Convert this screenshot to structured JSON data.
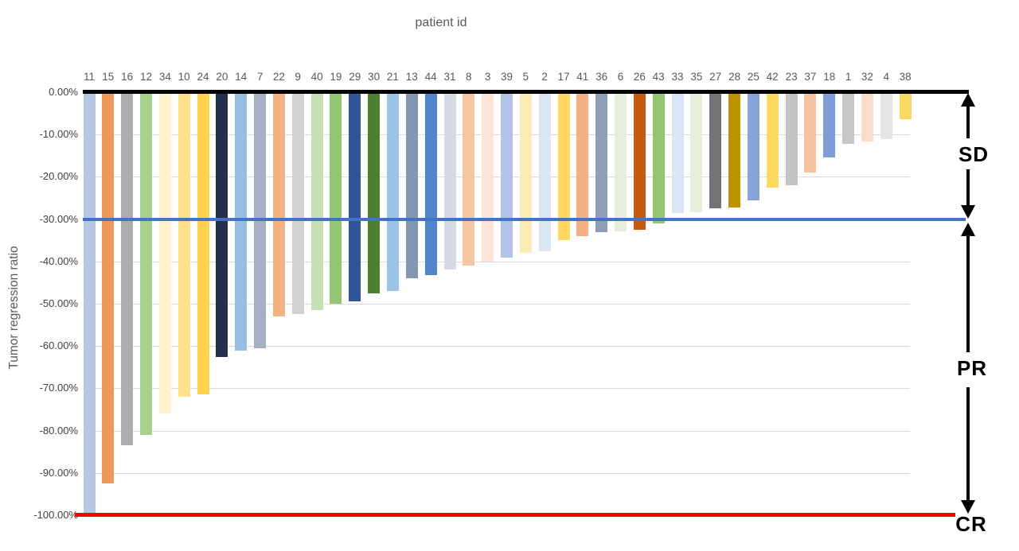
{
  "chart": {
    "title": "patient id",
    "y_axis_title": "Tumor regression ratio",
    "y_tick_labels": [
      "0.00%",
      "-10.00%",
      "-20.00%",
      "-30.00%",
      "-40.00%",
      "-50.00%",
      "-60.00%",
      "-70.00%",
      "-80.00%",
      "-90.00%",
      "-100.00%"
    ],
    "annotations": {
      "sd": "SD",
      "pr": "PR",
      "cr": "CR"
    }
  },
  "colors": {
    "zero_line": "#000000",
    "sd_pr_threshold_line": "#4472C4",
    "cr_line": "#FF0000",
    "gridline": "#D9D9D9",
    "tick_text": "#404040",
    "label_text": "#595959",
    "arrow": "#000000"
  },
  "chart_data": {
    "type": "bar",
    "title": "patient id",
    "xlabel": "patient id",
    "ylabel": "Tumor regression ratio",
    "ylim": [
      -100,
      0
    ],
    "yticks": [
      0,
      -10,
      -20,
      -30,
      -40,
      -50,
      -60,
      -70,
      -80,
      -90,
      -100
    ],
    "grid": "horizontal",
    "legend": "none",
    "categories": [
      "11",
      "15",
      "16",
      "12",
      "34",
      "10",
      "24",
      "20",
      "14",
      "7",
      "22",
      "9",
      "40",
      "19",
      "29",
      "30",
      "21",
      "13",
      "44",
      "31",
      "8",
      "3",
      "39",
      "5",
      "2",
      "17",
      "41",
      "36",
      "6",
      "26",
      "43",
      "33",
      "35",
      "27",
      "28",
      "25",
      "42",
      "23",
      "37",
      "18",
      "1",
      "32",
      "4",
      "38"
    ],
    "values": [
      -100,
      -92.5,
      -83.5,
      -81,
      -76,
      -72,
      -71.5,
      -62.5,
      -61,
      -60.5,
      -53,
      -52.5,
      -51.5,
      -50,
      -49.5,
      -47.5,
      -47,
      -44,
      -43.3,
      -42,
      -41,
      -40,
      -39,
      -38,
      -37.5,
      -35,
      -34,
      -33,
      -32.8,
      -32.5,
      -31,
      -28.6,
      -28.3,
      -27.5,
      -27.3,
      -25.5,
      -22.5,
      -22,
      -19,
      -15.4,
      -12.2,
      -11.7,
      -11,
      -6.4
    ],
    "bar_colors": [
      "#B4C7E7",
      "#F0975A",
      "#ACACAC",
      "#A9D18E",
      "#FFF2CC",
      "#FFE18A",
      "#FFD34D",
      "#24304C",
      "#96BDE4",
      "#A6B0C2",
      "#F4B183",
      "#D2D2D2",
      "#C6E0B4",
      "#94C573",
      "#2E5597",
      "#4E7E2F",
      "#9DC3E6",
      "#8497B0",
      "#4E86C8",
      "#D6DCE5",
      "#F6C6A0",
      "#FBE5D6",
      "#B2C3E5",
      "#FBECB6",
      "#DCE6F2",
      "#FFD95E",
      "#F4B183",
      "#8E9EB7",
      "#E4F0DC",
      "#C55A11",
      "#94C573",
      "#D8E5F3",
      "#E4F0DC",
      "#737373",
      "#BF9000",
      "#86A2D8",
      "#FFD95E",
      "#C3C3C3",
      "#F5C39E",
      "#7D9DD6",
      "#C6C6C6",
      "#F8DDCC",
      "#E6E5E5",
      "#FBD863"
    ],
    "reference_lines": [
      {
        "value": 0,
        "color": "#000000",
        "meaning": "baseline"
      },
      {
        "value": -30,
        "color": "#4472C4",
        "meaning": "SD / PR threshold"
      },
      {
        "value": -100,
        "color": "#FF0000",
        "meaning": "CR (complete response)"
      }
    ],
    "region_labels": [
      {
        "label": "SD",
        "from": 0,
        "to": -30
      },
      {
        "label": "PR",
        "from": -30,
        "to": -100
      },
      {
        "label": "CR",
        "at": -100
      }
    ]
  }
}
